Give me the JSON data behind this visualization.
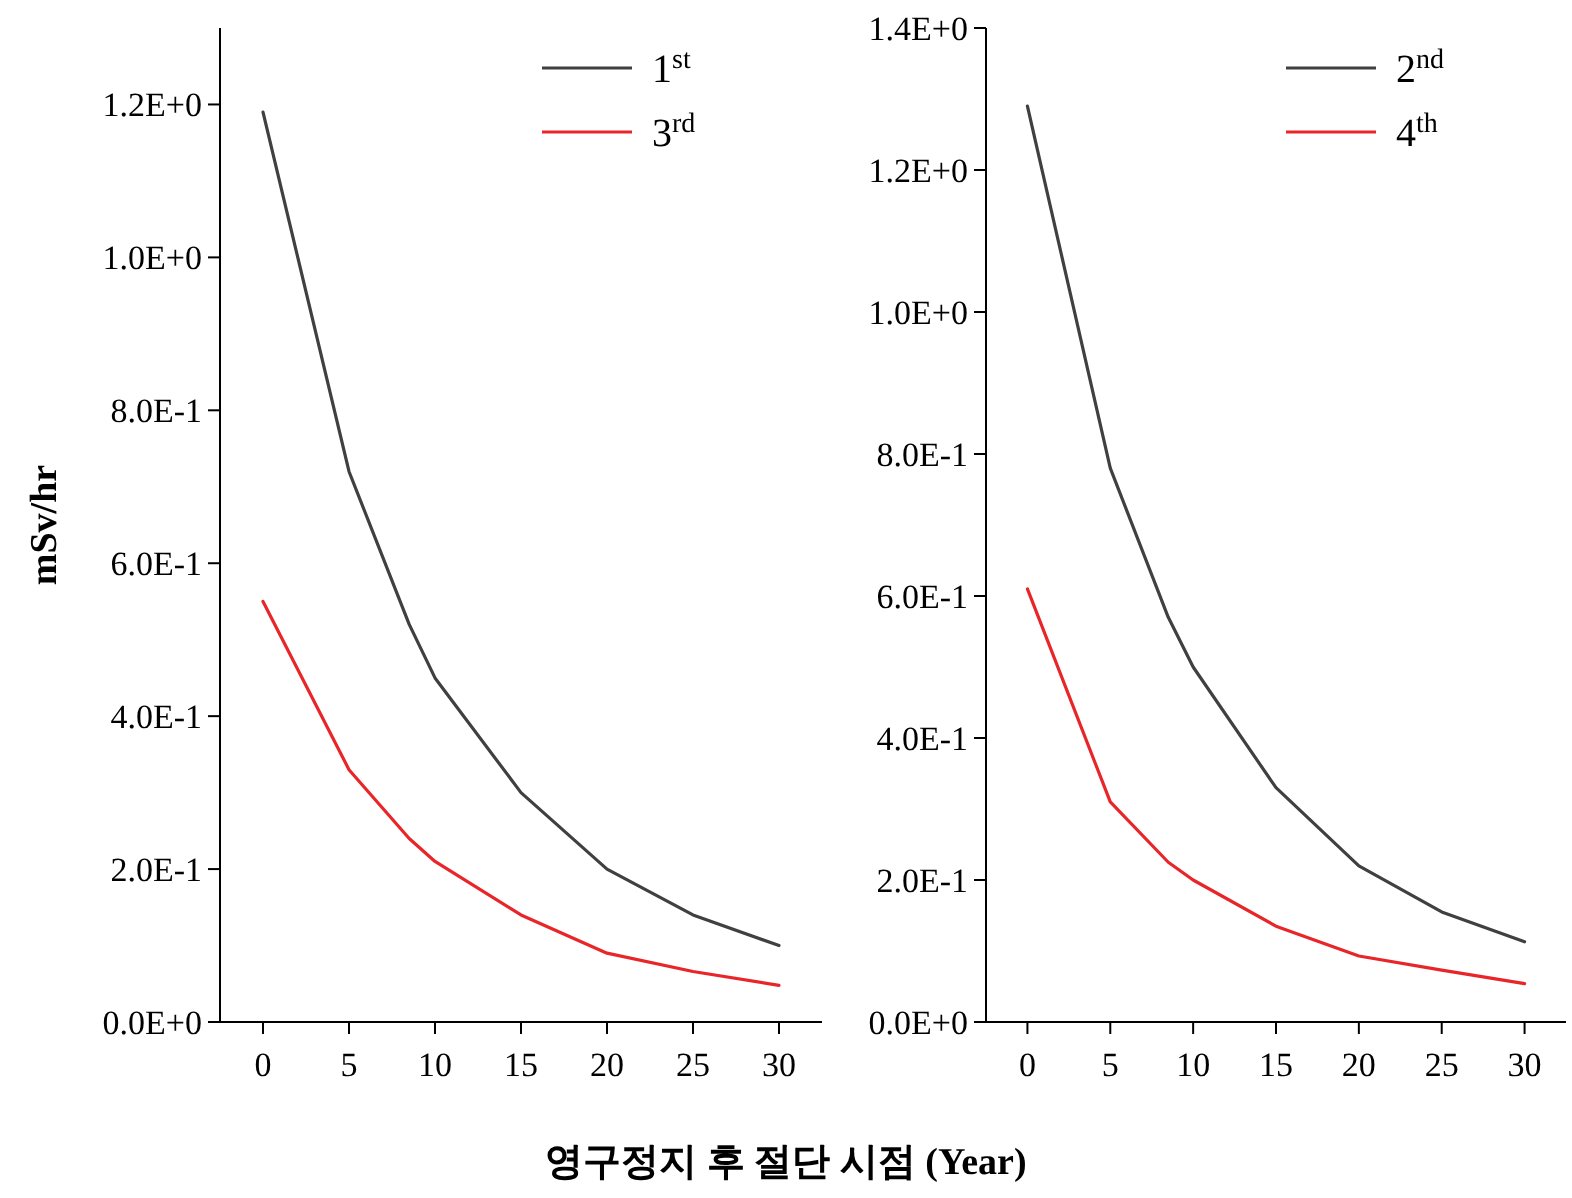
{
  "chart_data": [
    {
      "type": "line",
      "ylabel": "mSv/hr",
      "xlabel": "영구정지 후 절단 시점 (Year)",
      "x": [
        0,
        5,
        8.5,
        10,
        15,
        20,
        25,
        30
      ],
      "series": [
        {
          "name": "1$^{st}$",
          "color": "#404040",
          "values": [
            1.19,
            0.72,
            0.52,
            0.45,
            0.3,
            0.2,
            0.14,
            0.1
          ]
        },
        {
          "name": "3$^{rd}$",
          "color": "#e8262a",
          "values": [
            0.55,
            0.33,
            0.24,
            0.21,
            0.14,
            0.09,
            0.066,
            0.048
          ]
        }
      ],
      "xlim": [
        -2.5,
        32.5
      ],
      "ylim": [
        0,
        1.3
      ],
      "xticks": [
        0,
        5,
        10,
        15,
        20,
        25,
        30
      ],
      "yticks": [
        {
          "value": 0,
          "label": "0.0E+0"
        },
        {
          "value": 0.2,
          "label": "2.0E-1"
        },
        {
          "value": 0.4,
          "label": "4.0E-1"
        },
        {
          "value": 0.6,
          "label": "6.0E-1"
        },
        {
          "value": 0.8,
          "label": "8.0E-1"
        },
        {
          "value": 1.0,
          "label": "1.0E+0"
        },
        {
          "value": 1.2,
          "label": "1.2E+0"
        }
      ],
      "legend": "top right",
      "marker": "none",
      "line_style": "solid",
      "grid": false
    },
    {
      "type": "line",
      "x": [
        0,
        5,
        8.5,
        10,
        15,
        20,
        25,
        30
      ],
      "series": [
        {
          "name": "2$^{nd}$",
          "color": "#404040",
          "values": [
            1.29,
            0.78,
            0.57,
            0.5,
            0.33,
            0.22,
            0.155,
            0.113
          ]
        },
        {
          "name": "4$^{th}$",
          "color": "#e8262a",
          "values": [
            0.61,
            0.31,
            0.225,
            0.2,
            0.135,
            0.093,
            0.073,
            0.054
          ]
        }
      ],
      "xlim": [
        -2.5,
        32.5
      ],
      "ylim": [
        0,
        1.4
      ],
      "xticks": [
        0,
        5,
        10,
        15,
        20,
        25,
        30
      ],
      "yticks": [
        {
          "value": 0,
          "label": "0.0E+0"
        },
        {
          "value": 0.2,
          "label": "2.0E-1"
        },
        {
          "value": 0.4,
          "label": "4.0E-1"
        },
        {
          "value": 0.6,
          "label": "6.0E-1"
        },
        {
          "value": 0.8,
          "label": "8.0E-1"
        },
        {
          "value": 1.0,
          "label": "1.0E+0"
        },
        {
          "value": 1.2,
          "label": "1.2E+0"
        },
        {
          "value": 1.4,
          "label": "1.4E+0"
        }
      ],
      "legend": "top right",
      "marker": "none",
      "line_style": "solid",
      "grid": false
    }
  ]
}
